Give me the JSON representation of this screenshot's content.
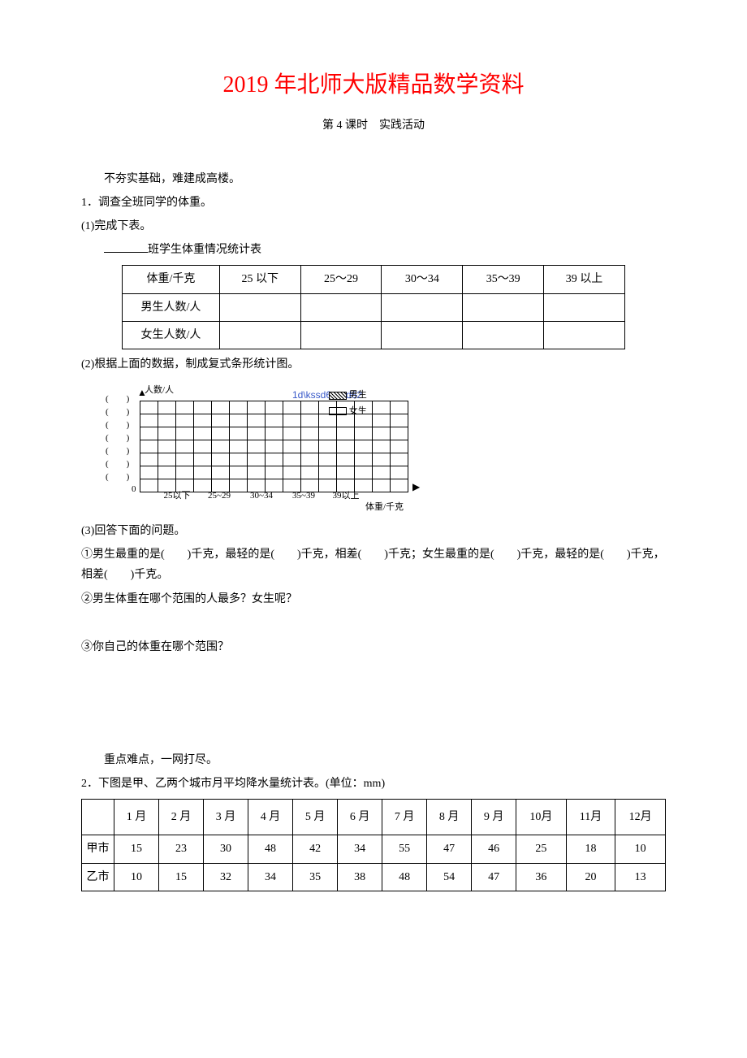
{
  "document": {
    "main_title": "2019 年北师大版精品数学资料",
    "subtitle": "第 4 课时　实践活动",
    "intro_text": "不夯实基础，难建成高楼。",
    "q1": {
      "prompt": "1．调查全班同学的体重。",
      "p1": "(1)完成下表。",
      "table_title_suffix": "班学生体重情况统计表",
      "table": {
        "headers": [
          "体重/千克",
          "25 以下",
          "25～29",
          "30～34",
          "35～39",
          "39 以上"
        ],
        "rows": [
          [
            "男生人数/人",
            "",
            "",
            "",
            "",
            ""
          ],
          [
            "女生人数/人",
            "",
            "",
            "",
            "",
            ""
          ]
        ]
      },
      "p2": "(2)根据上面的数据，制成复式条形统计图。",
      "chart": {
        "y_axis_label": "人数/人",
        "x_axis_label": "体重/千克",
        "y_ticks": [
          "(　　)",
          "(　　)",
          "(　　)",
          "(　　)",
          "(　　)",
          "(　　)",
          "(　　)"
        ],
        "x_ticks": [
          "25以下",
          "25~29",
          "30~34",
          "35~39",
          "39以上"
        ],
        "zero": "0",
        "legend_boy": "男生",
        "legend_girl": "女生",
        "watermark": "1d\\kssd6sxxd62",
        "grid_rows": 7,
        "grid_cols": 15
      },
      "p3": "(3)回答下面的问题。",
      "p3_1": "①男生最重的是(　　)千克，最轻的是(　　)千克，相差(　　)千克；女生最重的是(　　)千克，最轻的是(　　)千克，相差(　　)千克。",
      "p3_2": "②男生体重在哪个范围的人最多？女生呢？",
      "p3_3": "③你自己的体重在哪个范围？"
    },
    "section2_intro": "重点难点，一网打尽。",
    "q2": {
      "prompt": "2．下图是甲、乙两个城市月平均降水量统计表。(单位：mm)",
      "table": {
        "headers": [
          "",
          "1 月",
          "2 月",
          "3 月",
          "4 月",
          "5 月",
          "6 月",
          "7 月",
          "8 月",
          "9 月",
          "10月",
          "11月",
          "12月"
        ],
        "rows": [
          [
            "甲市",
            "15",
            "23",
            "30",
            "48",
            "42",
            "34",
            "55",
            "47",
            "46",
            "25",
            "18",
            "10"
          ],
          [
            "乙市",
            "10",
            "15",
            "32",
            "34",
            "35",
            "38",
            "48",
            "54",
            "47",
            "36",
            "20",
            "13"
          ]
        ]
      }
    }
  },
  "colors": {
    "title": "#ff0000",
    "text": "#000000",
    "watermark": "#3858c9"
  }
}
